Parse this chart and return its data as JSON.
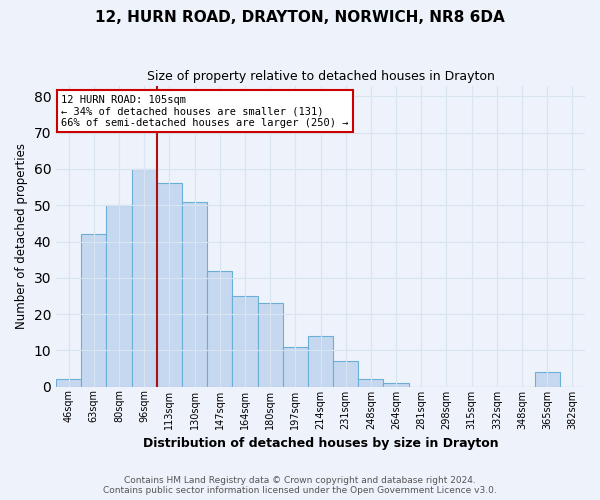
{
  "title": "12, HURN ROAD, DRAYTON, NORWICH, NR8 6DA",
  "subtitle": "Size of property relative to detached houses in Drayton",
  "xlabel": "Distribution of detached houses by size in Drayton",
  "ylabel": "Number of detached properties",
  "footer_line1": "Contains HM Land Registry data © Crown copyright and database right 2024.",
  "footer_line2": "Contains public sector information licensed under the Open Government Licence v3.0.",
  "bin_labels": [
    "46sqm",
    "63sqm",
    "80sqm",
    "96sqm",
    "113sqm",
    "130sqm",
    "147sqm",
    "164sqm",
    "180sqm",
    "197sqm",
    "214sqm",
    "231sqm",
    "248sqm",
    "264sqm",
    "281sqm",
    "298sqm",
    "315sqm",
    "332sqm",
    "348sqm",
    "365sqm",
    "382sqm"
  ],
  "bin_values": [
    2,
    42,
    50,
    60,
    56,
    51,
    32,
    25,
    23,
    11,
    14,
    7,
    2,
    1,
    0,
    0,
    0,
    0,
    0,
    4,
    0
  ],
  "ylim": [
    0,
    83
  ],
  "yticks": [
    0,
    10,
    20,
    30,
    40,
    50,
    60,
    70,
    80
  ],
  "bar_color": "#c5d8f0",
  "bar_edge_color": "#6baed6",
  "vline_x": 3.5,
  "vline_color": "#aa1111",
  "annotation_text": "12 HURN ROAD: 105sqm\n← 34% of detached houses are smaller (131)\n66% of semi-detached houses are larger (250) →",
  "annotation_box_color": "#ffffff",
  "annotation_box_edge": "#cc0000",
  "bg_color": "#eef2fa",
  "grid_color": "#d8e4f0",
  "title_fontsize": 11,
  "subtitle_fontsize": 9
}
